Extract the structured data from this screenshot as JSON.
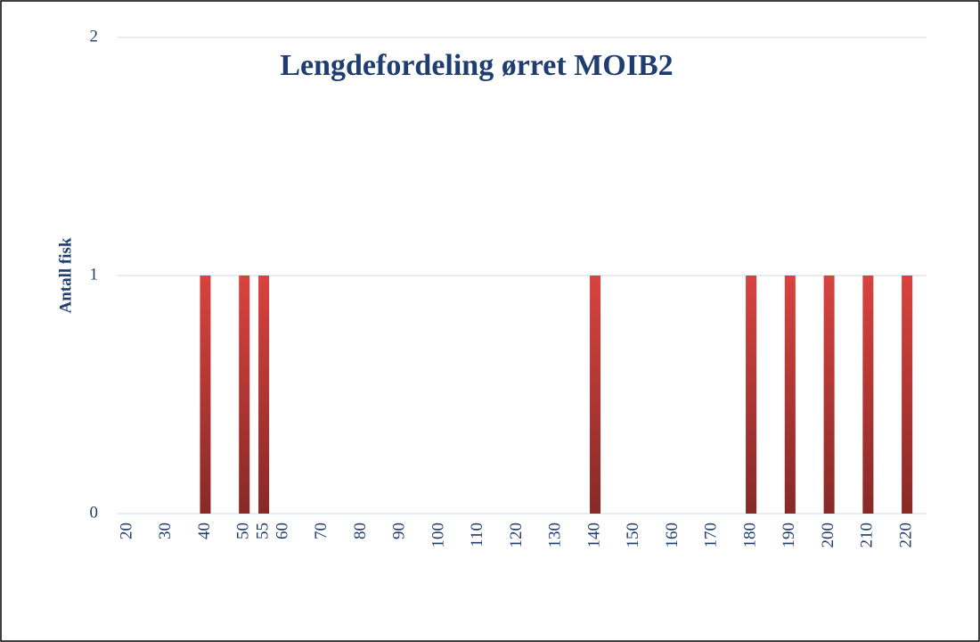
{
  "chart_data": {
    "type": "bar",
    "title": "Lengdefordeling ørret MOIB2",
    "y_label": "Antall fisk",
    "x": [
      40,
      50,
      55,
      140,
      180,
      190,
      200,
      210,
      220
    ],
    "values": [
      1,
      1,
      1,
      1,
      1,
      1,
      1,
      1,
      1
    ],
    "color": "#d8433f",
    "xlim": [
      17.5,
      225
    ],
    "xticks": [
      20,
      30,
      40,
      50,
      55,
      60,
      70,
      80,
      90,
      100,
      110,
      120,
      130,
      140,
      150,
      160,
      170,
      180,
      190,
      200,
      210,
      220
    ],
    "ylim": [
      0,
      2
    ],
    "yticks": [
      0,
      1,
      2
    ],
    "grid": true
  }
}
